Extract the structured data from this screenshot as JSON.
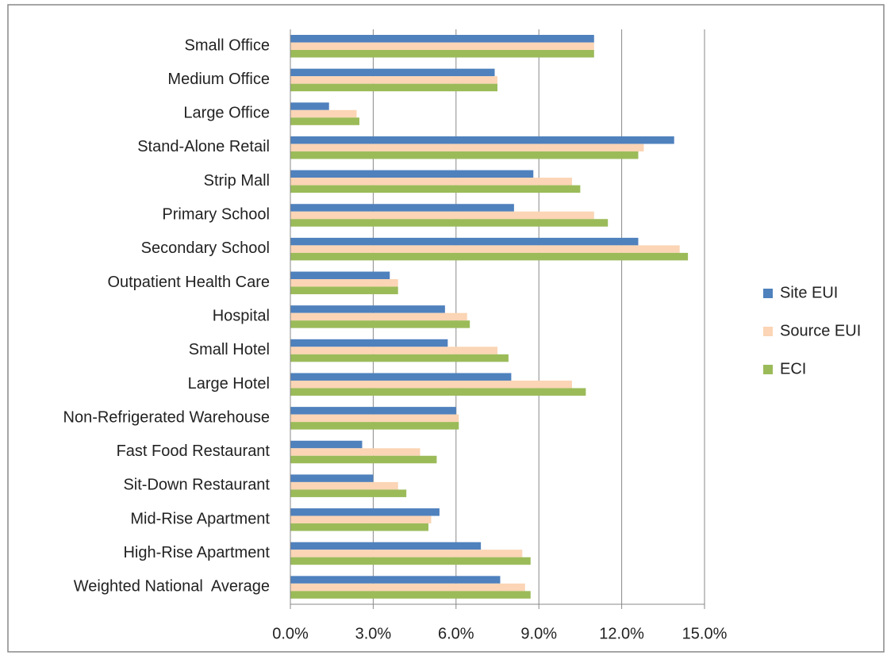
{
  "chart_data": {
    "type": "bar",
    "orientation": "horizontal",
    "categories": [
      "Small Office",
      "Medium Office",
      "Large Office",
      "Stand-Alone Retail",
      "Strip Mall",
      "Primary School",
      "Secondary School",
      "Outpatient Health Care",
      "Hospital",
      "Small Hotel",
      "Large Hotel",
      "Non-Refrigerated Warehouse",
      "Fast Food Restaurant",
      "Sit-Down Restaurant",
      "Mid-Rise Apartment",
      "High-Rise Apartment",
      "Weighted National  Average"
    ],
    "series": [
      {
        "name": "Site EUI",
        "color": "#4f81bd",
        "values": [
          11.0,
          7.4,
          1.4,
          13.9,
          8.8,
          8.1,
          12.6,
          3.6,
          5.6,
          5.7,
          8.0,
          6.0,
          2.6,
          3.0,
          5.4,
          6.9,
          7.6
        ]
      },
      {
        "name": "Source EUI",
        "color": "#fbd5b5",
        "values": [
          11.0,
          7.5,
          2.4,
          12.8,
          10.2,
          11.0,
          14.1,
          3.9,
          6.4,
          7.5,
          10.2,
          6.1,
          4.7,
          3.9,
          5.1,
          8.4,
          8.5
        ]
      },
      {
        "name": "ECI",
        "color": "#9bbb59",
        "values": [
          11.0,
          7.5,
          2.5,
          12.6,
          10.5,
          11.5,
          14.4,
          3.9,
          6.5,
          7.9,
          10.7,
          6.1,
          5.3,
          4.2,
          5.0,
          8.7,
          8.7
        ]
      }
    ],
    "xlim": [
      0,
      15
    ],
    "xticks": [
      {
        "value": 0,
        "label": "0.0%"
      },
      {
        "value": 3,
        "label": "3.0%"
      },
      {
        "value": 6,
        "label": "6.0%"
      },
      {
        "value": 9,
        "label": "9.0%"
      },
      {
        "value": 12,
        "label": "12.0%"
      },
      {
        "value": 15,
        "label": "15.0%"
      }
    ],
    "grid": true,
    "legend": "right"
  }
}
